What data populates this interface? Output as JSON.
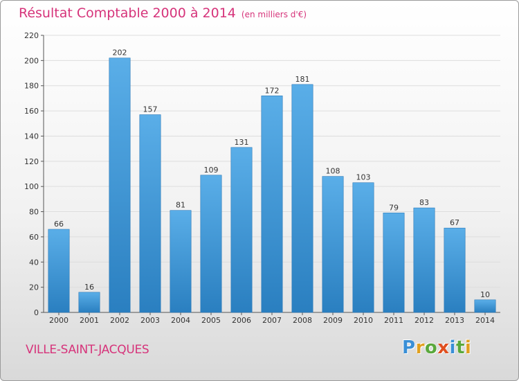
{
  "header": {
    "title": "Résultat Comptable 2000 à 2014",
    "subtitle": "(en milliers d'€)"
  },
  "footer": {
    "commune": "VILLE-SAINT-JACQUES",
    "logo": [
      "P",
      "r",
      "o",
      "x",
      "i",
      "t",
      "i"
    ]
  },
  "colors": {
    "title": "#d6337a",
    "bar_light": "#5aaee8",
    "bar_dark": "#2a7fc0",
    "logo": [
      "#3a8fd6",
      "#e0a020",
      "#5aa83c",
      "#e05020",
      "#3a8fd6",
      "#5aa83c",
      "#e0a020"
    ]
  },
  "chart_data": {
    "type": "bar",
    "title": "Résultat Comptable 2000 à 2014",
    "xlabel": "",
    "ylabel": "",
    "ylim": [
      0,
      220
    ],
    "yticks": [
      0,
      20,
      40,
      60,
      80,
      100,
      120,
      140,
      160,
      180,
      200,
      220
    ],
    "grid": true,
    "categories": [
      "2000",
      "2001",
      "2002",
      "2003",
      "2004",
      "2005",
      "2006",
      "2007",
      "2008",
      "2009",
      "2010",
      "2011",
      "2012",
      "2013",
      "2014"
    ],
    "values": [
      66,
      16,
      202,
      157,
      81,
      109,
      131,
      172,
      181,
      108,
      103,
      79,
      83,
      67,
      10
    ]
  }
}
